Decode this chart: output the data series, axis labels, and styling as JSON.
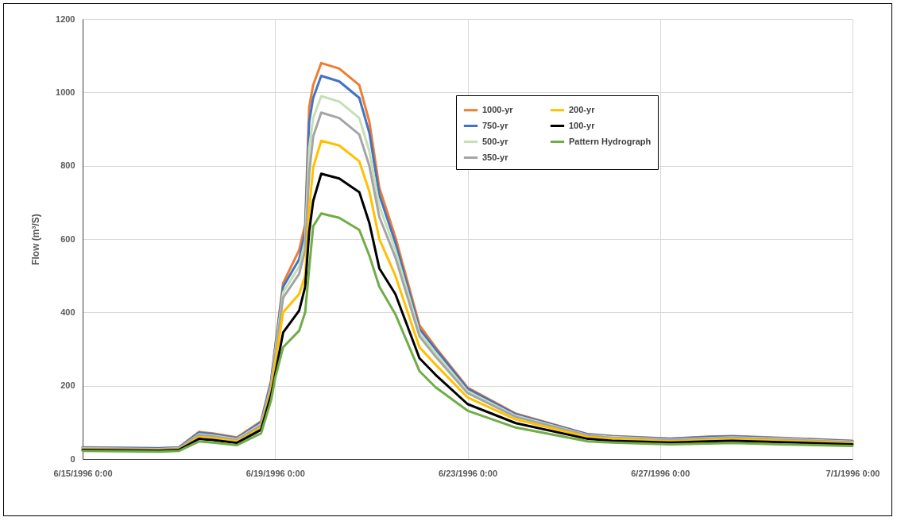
{
  "chart_data": {
    "type": "line",
    "ylabel": "Flow  (m³/S)",
    "x": [
      "1996-06-15T00:00",
      "1996-06-16T14:00",
      "1996-06-17T00:00",
      "1996-06-17T10:00",
      "1996-06-17T17:00",
      "1996-06-18T05:00",
      "1996-06-18T17:00",
      "1996-06-18T22:00",
      "1996-06-19T00:00",
      "1996-06-19T04:00",
      "1996-06-19T12:00",
      "1996-06-19T15:00",
      "1996-06-19T17:00",
      "1996-06-19T19:00",
      "1996-06-19T23:00",
      "1996-06-20T08:00",
      "1996-06-20T18:00",
      "1996-06-20T23:00",
      "1996-06-21T04:00",
      "1996-06-21T12:00",
      "1996-06-22T00:00",
      "1996-06-22T08:00",
      "1996-06-23T00:00",
      "1996-06-24T00:00",
      "1996-06-25T12:00",
      "1996-06-26T00:00",
      "1996-06-27T05:00",
      "1996-06-28T00:00",
      "1996-06-28T12:00",
      "1996-06-29T12:00",
      "1996-07-01T00:00"
    ],
    "series": [
      {
        "name": "1000-yr",
        "color": "#ed7d31",
        "values": [
          32,
          30,
          32,
          74,
          70,
          59,
          103,
          215,
          305,
          480,
          570,
          640,
          960,
          1020,
          1080,
          1065,
          1020,
          920,
          740,
          605,
          365,
          305,
          195,
          124,
          68,
          63,
          56,
          61,
          63,
          58,
          50
        ]
      },
      {
        "name": "750-yr",
        "color": "#4472c4",
        "values": [
          31,
          29,
          31,
          72,
          68,
          57,
          100,
          210,
          300,
          470,
          545,
          620,
          920,
          985,
          1045,
          1030,
          985,
          890,
          720,
          590,
          355,
          300,
          192,
          122,
          67,
          62,
          55,
          60,
          62,
          57,
          49
        ]
      },
      {
        "name": "500-yr",
        "color": "#c5e0b4",
        "values": [
          29,
          27,
          29,
          68,
          64,
          54,
          95,
          200,
          290,
          455,
          525,
          595,
          850,
          930,
          990,
          975,
          930,
          840,
          690,
          570,
          345,
          290,
          185,
          118,
          65,
          60,
          53,
          57,
          59,
          55,
          47
        ]
      },
      {
        "name": "350-yr",
        "color": "#a5a5a5",
        "values": [
          28,
          26,
          28,
          66,
          62,
          52,
          92,
          195,
          280,
          440,
          505,
          570,
          780,
          880,
          945,
          930,
          885,
          800,
          660,
          550,
          335,
          280,
          180,
          115,
          64,
          58,
          52,
          56,
          58,
          53,
          46
        ]
      },
      {
        "name": "200-yr",
        "color": "#ffc000",
        "values": [
          26,
          24,
          26,
          60,
          57,
          48,
          85,
          185,
          260,
          400,
          450,
          500,
          680,
          795,
          868,
          855,
          812,
          730,
          600,
          500,
          305,
          258,
          168,
          108,
          60,
          55,
          48,
          52,
          54,
          50,
          43
        ]
      },
      {
        "name": "100-yr",
        "color": "#000000",
        "values": [
          25,
          23,
          25,
          55,
          52,
          44,
          80,
          175,
          230,
          345,
          405,
          470,
          620,
          704,
          778,
          765,
          728,
          644,
          520,
          450,
          275,
          230,
          150,
          98,
          55,
          50,
          45,
          48,
          50,
          46,
          40
        ]
      },
      {
        "name": "Pattern Hydrograph",
        "color": "#70ad47",
        "values": [
          22,
          20,
          22,
          48,
          45,
          38,
          70,
          160,
          220,
          305,
          350,
          400,
          520,
          635,
          670,
          658,
          625,
          555,
          470,
          395,
          240,
          196,
          132,
          86,
          48,
          45,
          40,
          42,
          44,
          40,
          36
        ]
      }
    ],
    "xlim": [
      "1996-06-15T00:00",
      "1996-07-01T00:00"
    ],
    "xticks": [
      {
        "value": "1996-06-15T00:00",
        "label": "6/15/1996 0:00"
      },
      {
        "value": "1996-06-19T00:00",
        "label": "6/19/1996 0:00"
      },
      {
        "value": "1996-06-23T00:00",
        "label": "6/23/1996 0:00"
      },
      {
        "value": "1996-06-27T00:00",
        "label": "6/27/1996 0:00"
      },
      {
        "value": "1996-07-01T00:00",
        "label": "7/1/1996 0:00"
      }
    ],
    "ylim": [
      0,
      1200
    ],
    "yticks": [
      0,
      200,
      400,
      600,
      800,
      1000,
      1200
    ],
    "grid": true,
    "legend": "top right",
    "line_style": "solid"
  }
}
